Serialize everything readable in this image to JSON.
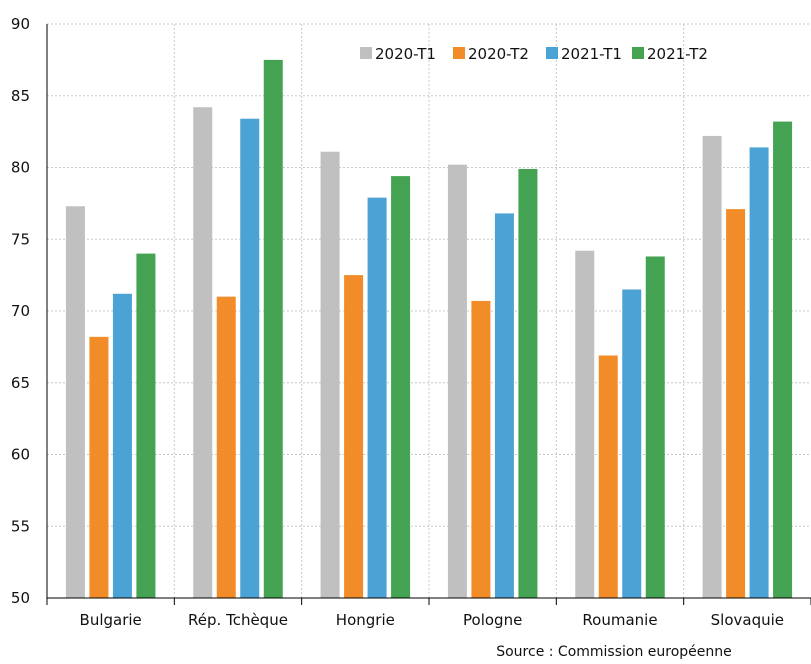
{
  "chart_data": {
    "type": "bar",
    "categories": [
      "Bulgarie",
      "Rép. Tchèque",
      "Hongrie",
      "Pologne",
      "Roumanie",
      "Slovaquie"
    ],
    "series": [
      {
        "name": "2020-T1",
        "color": "#c0c0c0",
        "values": [
          77.3,
          84.2,
          81.1,
          80.2,
          74.2,
          82.2
        ]
      },
      {
        "name": "2020-T2",
        "color": "#f28c28",
        "values": [
          68.2,
          71.0,
          72.5,
          70.7,
          66.9,
          77.1
        ]
      },
      {
        "name": "2021-T1",
        "color": "#4aa3d4",
        "values": [
          71.2,
          83.4,
          77.9,
          76.8,
          71.5,
          81.4
        ]
      },
      {
        "name": "2021-T2",
        "color": "#43a352",
        "values": [
          74.0,
          87.5,
          79.4,
          79.9,
          73.8,
          83.2
        ]
      }
    ],
    "ylim": [
      50,
      90
    ],
    "yticks": [
      "50",
      "55",
      "60",
      "65",
      "70",
      "75",
      "80",
      "85",
      "90"
    ],
    "grid": true,
    "legend_position": "top-right",
    "title": "",
    "xlabel": "",
    "ylabel": "",
    "source": "Source : Commission européenne"
  }
}
